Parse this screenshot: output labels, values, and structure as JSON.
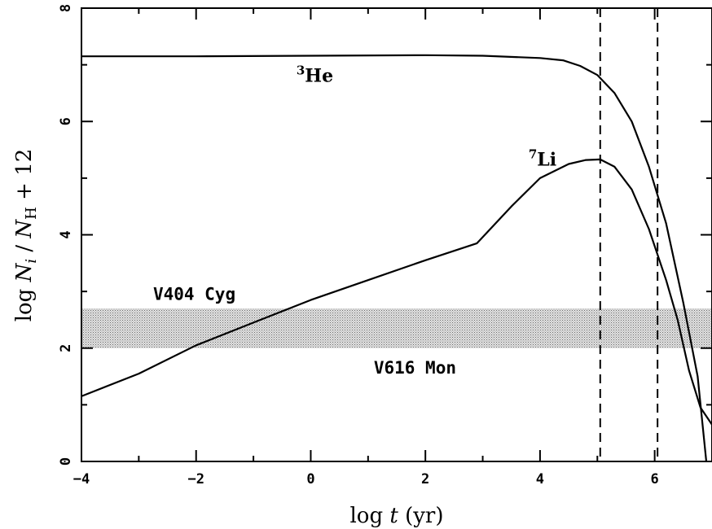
{
  "chart_data": {
    "type": "line",
    "xlabel": "log t (yr)",
    "ylabel": "log N_i / N_H + 12",
    "xlim": [
      -4,
      7
    ],
    "ylim": [
      0,
      8
    ],
    "xticks": [
      -4,
      -2,
      0,
      2,
      4,
      6
    ],
    "yticks": [
      0,
      2,
      4,
      6,
      8
    ],
    "xtick_labels": [
      "−4",
      "−2",
      "0",
      "2",
      "4",
      "6"
    ],
    "ytick_labels": [
      "0",
      "2",
      "4",
      "6",
      "8"
    ],
    "series": [
      {
        "name": "3He",
        "label_sup": "3",
        "label_main": "He",
        "x": [
          -4,
          -2,
          0,
          2,
          3,
          4,
          4.4,
          4.7,
          5.0,
          5.3,
          5.6,
          5.9,
          6.2,
          6.5,
          6.75,
          6.9
        ],
        "y": [
          7.15,
          7.15,
          7.16,
          7.17,
          7.16,
          7.12,
          7.08,
          6.98,
          6.82,
          6.5,
          6.0,
          5.2,
          4.2,
          2.8,
          1.5,
          0.0
        ]
      },
      {
        "name": "7Li",
        "label_sup": "7",
        "label_main": "Li",
        "x": [
          -4,
          -3,
          -2,
          -1,
          0,
          1,
          2,
          2.9,
          3.5,
          4.0,
          4.5,
          4.8,
          5.05,
          5.3,
          5.6,
          5.9,
          6.2,
          6.4,
          6.6,
          6.8,
          7.0
        ],
        "y": [
          1.15,
          1.55,
          2.05,
          2.45,
          2.85,
          3.2,
          3.55,
          3.85,
          4.5,
          5.0,
          5.25,
          5.32,
          5.33,
          5.2,
          4.8,
          4.1,
          3.2,
          2.5,
          1.6,
          0.95,
          0.65
        ]
      }
    ],
    "bands": [
      {
        "y": [
          2.0,
          2.7
        ],
        "color": "#bdbdbd"
      }
    ],
    "vlines": [
      {
        "x": 5.05,
        "style": "dashed"
      },
      {
        "x": 6.05,
        "style": "dashed"
      }
    ],
    "annotations": [
      {
        "text": "V404 Cyg",
        "x": -2.75,
        "y": 2.85
      },
      {
        "text": "V616 Mon",
        "x": 1.1,
        "y": 1.55
      }
    ],
    "series_labels_pos": [
      {
        "x": -0.25,
        "y": 6.7
      },
      {
        "x": 3.8,
        "y": 5.22
      }
    ],
    "grid": false
  }
}
